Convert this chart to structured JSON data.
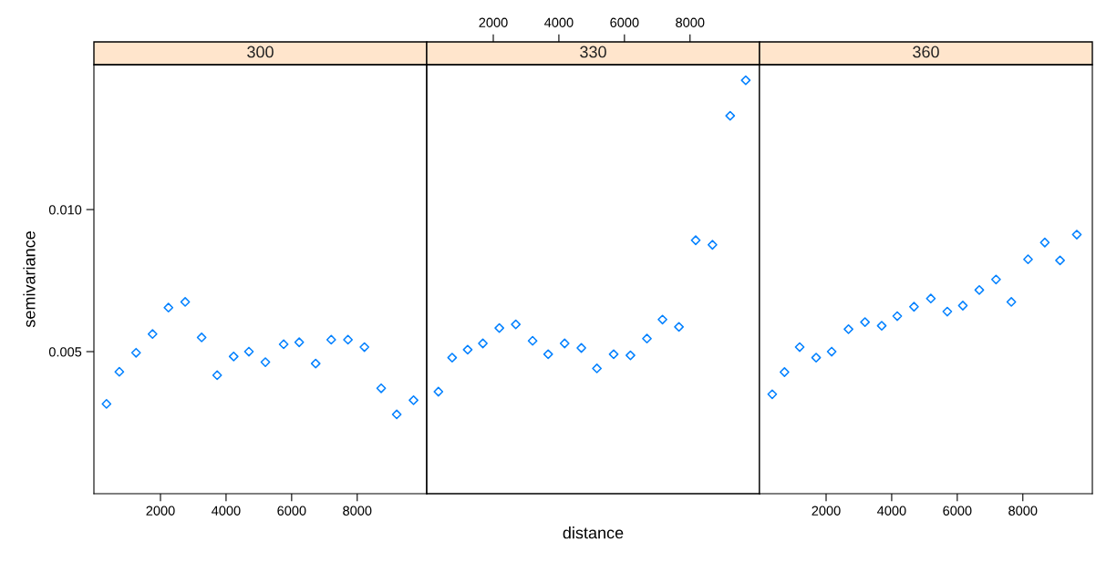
{
  "chart_data": [
    {
      "type": "scatter",
      "title": "300",
      "ylabel": "semivariance",
      "marker": "diamond",
      "grid": false,
      "legend": false,
      "xlim": [
        -30,
        10120
      ],
      "ylim": [
        0,
        0.0151
      ],
      "xticks": [
        2000,
        4000,
        6000,
        8000
      ],
      "yticks": [
        {
          "value": 0.005,
          "label": "0.005"
        },
        {
          "value": 0.01,
          "label": "0.010"
        }
      ],
      "series": [
        {
          "color": "#0080ff",
          "x": [
            354,
            745,
            1256,
            1758,
            2243,
            2753,
            3255,
            3729,
            4232,
            4697,
            5199,
            5757,
            6231,
            6733,
            7208,
            7718,
            8220,
            8731,
            9205,
            9718
          ],
          "values": [
            0.00316,
            0.00429,
            0.00496,
            0.00562,
            0.00655,
            0.00675,
            0.0055,
            0.00417,
            0.00483,
            0.005,
            0.00463,
            0.00526,
            0.00533,
            0.00458,
            0.00542,
            0.00542,
            0.00516,
            0.00371,
            0.00279,
            0.00329
          ]
        }
      ]
    },
    {
      "type": "scatter",
      "title": "330",
      "xlabel": "distance",
      "marker": "diamond",
      "grid": false,
      "legend": false,
      "tick_labels": false,
      "xlim": [
        -30,
        10120
      ],
      "ylim": [
        0,
        0.0151
      ],
      "x2lim": [
        -30,
        10120
      ],
      "x2ticks": [
        2000,
        4000,
        6000,
        8000
      ],
      "series": [
        {
          "color": "#0080ff",
          "x": [
            326,
            745,
            1219,
            1682,
            2184,
            2686,
            3199,
            3674,
            4176,
            4686,
            5160,
            5671,
            6183,
            6686,
            7160,
            7662,
            8173,
            8684,
            9224,
            9699
          ],
          "values": [
            0.00359,
            0.00479,
            0.00507,
            0.00529,
            0.00583,
            0.00596,
            0.00538,
            0.00491,
            0.00529,
            0.00513,
            0.00441,
            0.00491,
            0.00487,
            0.00546,
            0.00613,
            0.00587,
            0.00892,
            0.00876,
            0.0133,
            0.01455
          ]
        }
      ]
    },
    {
      "type": "scatter",
      "title": "360",
      "marker": "diamond",
      "grid": false,
      "legend": false,
      "tick_labels": "x",
      "xlim": [
        -30,
        10120
      ],
      "ylim": [
        0,
        0.0151
      ],
      "xticks": [
        2000,
        4000,
        6000,
        8000
      ],
      "series": [
        {
          "color": "#0080ff",
          "x": [
            357,
            731,
            1194,
            1696,
            2170,
            2683,
            3186,
            3696,
            4170,
            4681,
            5194,
            5696,
            6170,
            6672,
            7183,
            7649,
            8159,
            8670,
            9135,
            9646
          ],
          "values": [
            0.0035,
            0.00428,
            0.00516,
            0.00479,
            0.005,
            0.00579,
            0.00604,
            0.00591,
            0.00625,
            0.00658,
            0.00687,
            0.00641,
            0.00662,
            0.00717,
            0.00754,
            0.00675,
            0.00825,
            0.00884,
            0.00821,
            0.00912
          ]
        }
      ]
    }
  ]
}
